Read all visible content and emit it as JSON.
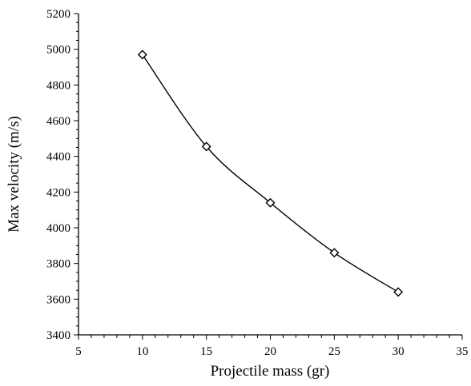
{
  "chart_data": {
    "type": "line",
    "title": "",
    "xlabel": "Projectile mass (gr)",
    "ylabel": "Max velocity (m/s)",
    "xlim": [
      5,
      35
    ],
    "ylim": [
      3400,
      5200
    ],
    "x_ticks": [
      5,
      10,
      15,
      20,
      25,
      30,
      35
    ],
    "y_ticks": [
      3400,
      3600,
      3800,
      4000,
      4200,
      4400,
      4600,
      4800,
      5000,
      5200
    ],
    "grid": false,
    "legend": "none",
    "series": [
      {
        "marker": "diamond-open",
        "color": "#000000",
        "smooth": true,
        "points": [
          {
            "x": 10,
            "y": 4970
          },
          {
            "x": 15,
            "y": 4455
          },
          {
            "x": 20,
            "y": 4140
          },
          {
            "x": 25,
            "y": 3860
          },
          {
            "x": 30,
            "y": 3640
          }
        ]
      }
    ]
  }
}
